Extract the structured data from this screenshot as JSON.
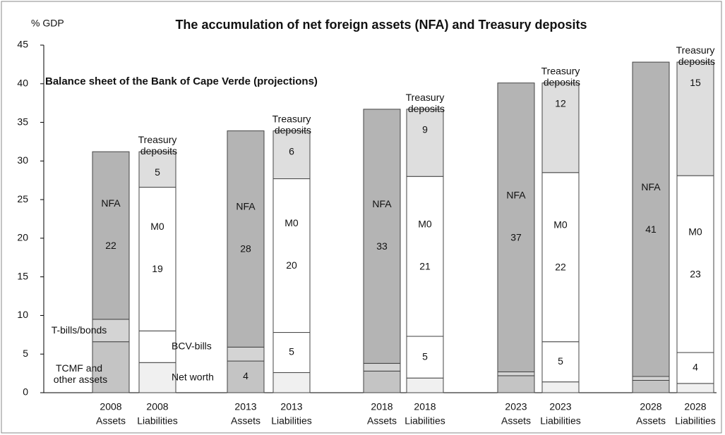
{
  "chart_data": {
    "type": "stacked_bar",
    "title": "The accumulation of net foreign assets (NFA) and Treasury deposits",
    "subtitle": "Balance sheet of the Bank of Cape Verde (projections)",
    "y_label": "% GDP",
    "categories": [
      "2008",
      "2008",
      "2013",
      "2013",
      "2018",
      "2018",
      "2023",
      "2023",
      "2028",
      "2028"
    ],
    "sublabels": [
      "Assets",
      "Liabilities",
      "Assets",
      "Liabilities",
      "Assets",
      "Liabilities",
      "Assets",
      "Liabilities",
      "Assets",
      "Liabilities"
    ],
    "ylim": [
      0,
      45
    ],
    "yticks": [
      0,
      5,
      10,
      15,
      20,
      25,
      30,
      35,
      40,
      45
    ],
    "series": [
      {
        "name": "TCMF and other assets",
        "color": "#c4c4c4",
        "values": [
          6.6,
          null,
          4.1,
          null,
          2.8,
          null,
          2.2,
          null,
          1.6,
          null
        ],
        "value_labels": [
          null,
          null,
          "4",
          null,
          null,
          null,
          null,
          null,
          null,
          null
        ]
      },
      {
        "name": "T-bills/bonds",
        "color": "#d4d4d4",
        "values": [
          2.9,
          null,
          1.8,
          null,
          1.0,
          null,
          0.5,
          null,
          0.5,
          null
        ]
      },
      {
        "name": "NFA",
        "color": "#b4b4b4",
        "values": [
          21.7,
          null,
          28,
          null,
          32.9,
          null,
          37.4,
          null,
          40.7,
          null
        ],
        "value_labels": [
          "22",
          null,
          "28",
          null,
          "33",
          null,
          "37",
          null,
          "41",
          null
        ]
      },
      {
        "name": "Net worth",
        "color": "#f0f0f0",
        "values": [
          null,
          3.9,
          null,
          2.6,
          null,
          1.9,
          null,
          1.4,
          null,
          1.2
        ]
      },
      {
        "name": "BCV-bills",
        "color": "#ffffff",
        "values": [
          null,
          4.1,
          null,
          5.2,
          null,
          5.4,
          null,
          5.2,
          null,
          4.0
        ],
        "value_labels": [
          null,
          null,
          null,
          "5",
          null,
          "5",
          null,
          "5",
          null,
          "4"
        ]
      },
      {
        "name": "M0",
        "color": "#ffffff",
        "values": [
          null,
          18.6,
          null,
          19.9,
          null,
          20.7,
          null,
          21.9,
          null,
          22.9
        ],
        "value_labels": [
          null,
          "19",
          null,
          "20",
          null,
          "21",
          null,
          "22",
          null,
          "23"
        ]
      },
      {
        "name": "Treasury deposits",
        "color": "#dedede",
        "values": [
          null,
          4.6,
          null,
          6.2,
          null,
          8.7,
          null,
          11.6,
          null,
          14.7
        ],
        "value_labels": [
          null,
          "5",
          null,
          "6",
          null,
          "9",
          null,
          "12",
          null,
          "15"
        ]
      }
    ]
  }
}
